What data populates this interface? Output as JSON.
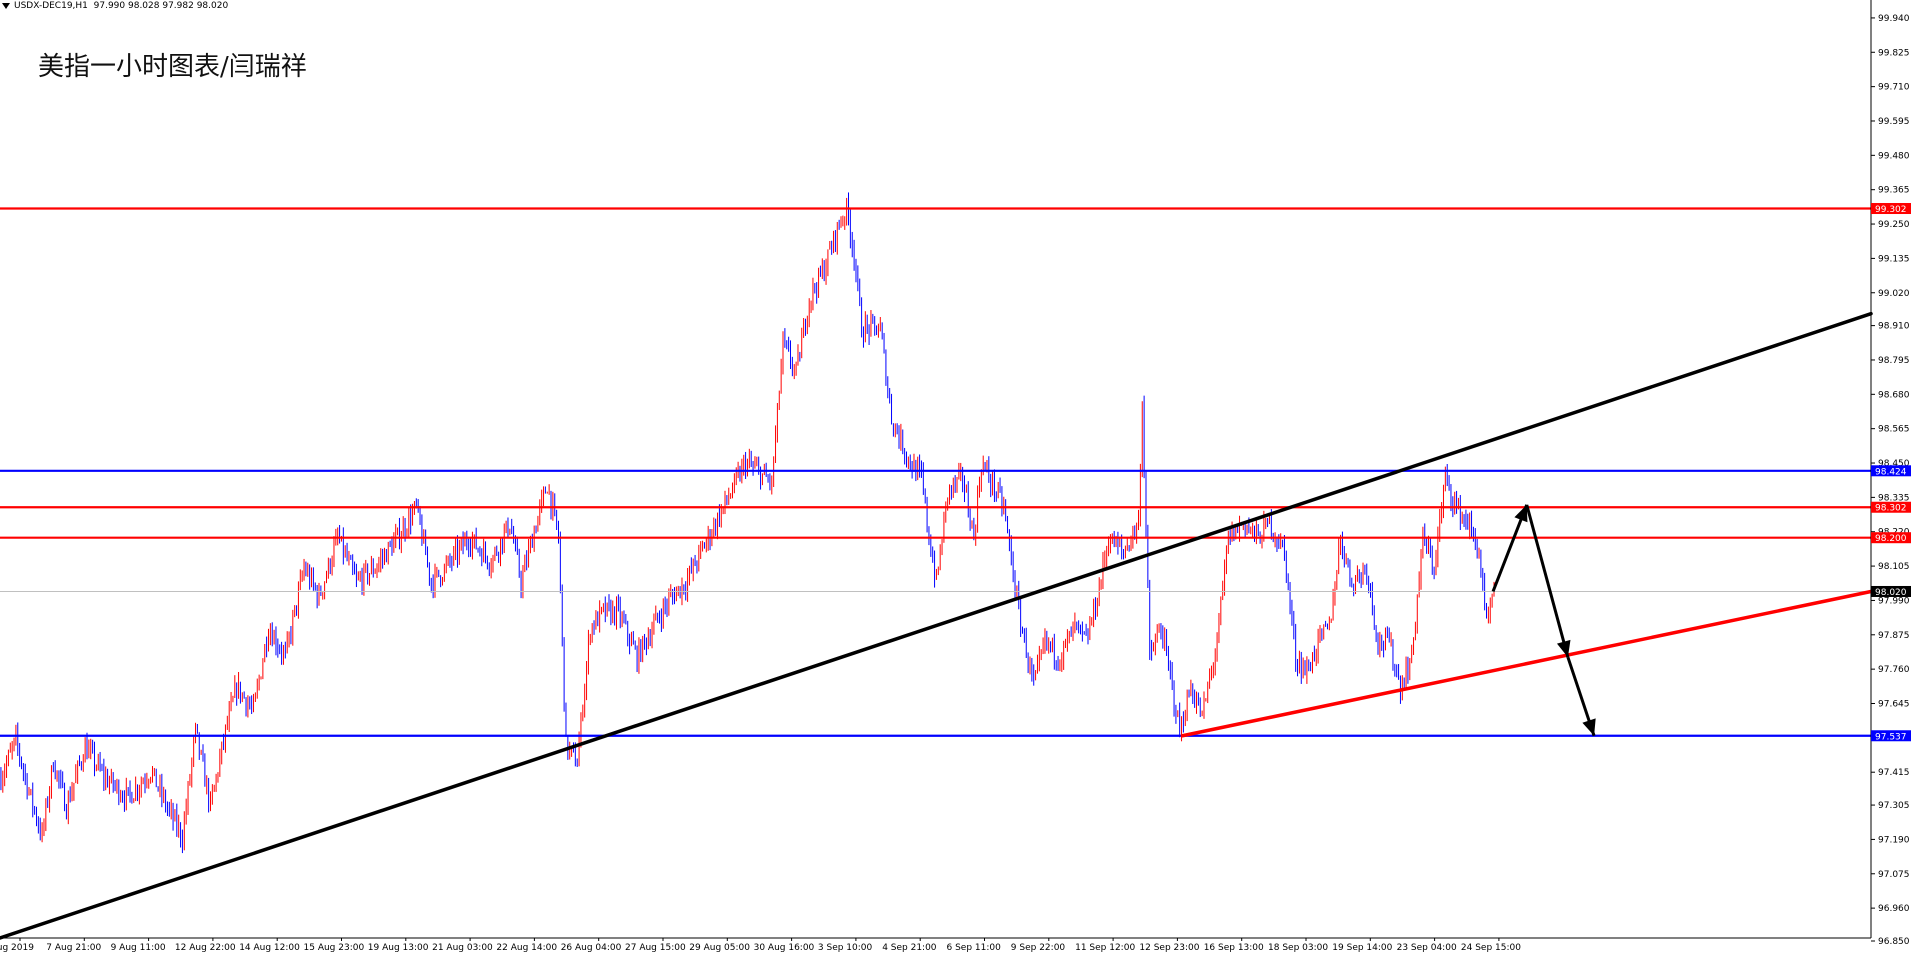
{
  "header": {
    "symbol": "USDX-DEC19,H1",
    "ohlc": "97.990 98.028 97.982 98.020"
  },
  "title": "美指一小时图表/闫瑞祥",
  "chart_data": {
    "type": "candlestick",
    "ylim": [
      96.86,
      100.0
    ],
    "y_ticks": [
      "99.940",
      "99.825",
      "99.710",
      "99.595",
      "99.480",
      "99.365",
      "99.250",
      "99.135",
      "99.020",
      "98.910",
      "98.795",
      "98.680",
      "98.565",
      "98.450",
      "98.335",
      "98.220",
      "98.105",
      "97.990",
      "97.875",
      "97.760",
      "97.645",
      "97.530",
      "97.415",
      "97.305",
      "97.190",
      "97.075",
      "96.960",
      "96.850"
    ],
    "x_labels": [
      "5 Aug 2019",
      "7 Aug 21:00",
      "9 Aug 11:00",
      "12 Aug 22:00",
      "14 Aug 12:00",
      "15 Aug 23:00",
      "19 Aug 13:00",
      "21 Aug 03:00",
      "22 Aug 14:00",
      "26 Aug 04:00",
      "27 Aug 15:00",
      "29 Aug 05:00",
      "30 Aug 16:00",
      "3 Sep 10:00",
      "4 Sep 21:00",
      "6 Sep 11:00",
      "9 Sep 22:00",
      "11 Sep 12:00",
      "12 Sep 23:00",
      "16 Sep 13:00",
      "18 Sep 03:00",
      "19 Sep 14:00",
      "23 Sep 04:00",
      "24 Sep 15:00"
    ],
    "levels": [
      {
        "value": 99.302,
        "label": "99.302",
        "color": "#ff0000"
      },
      {
        "value": 98.424,
        "label": "98.424",
        "color": "#0000ff"
      },
      {
        "value": 98.302,
        "label": "98.302",
        "color": "#ff0000"
      },
      {
        "value": 98.2,
        "label": "98.200",
        "color": "#ff0000"
      },
      {
        "value": 97.537,
        "label": "97.537",
        "color": "#0000ff"
      }
    ],
    "current_price": {
      "value": 98.02,
      "label": "98.020"
    },
    "candle_colors": {
      "up": "#ff0000",
      "down": "#0000ff"
    },
    "trendlines": [
      {
        "name": "long-uptrend",
        "color": "#000000",
        "from": {
          "bar": 0,
          "price": 96.86
        },
        "to": {
          "bar": 1000,
          "price": 98.95
        }
      },
      {
        "name": "support-trend",
        "color": "#ff0000",
        "from": {
          "bar": 632,
          "price": 97.537
        },
        "to": {
          "bar": 1000,
          "price": 98.02
        }
      }
    ],
    "projection_arrows": [
      {
        "from": {
          "bar": 798,
          "price": 98.02
        },
        "to": {
          "bar": 816,
          "price": 98.31
        }
      },
      {
        "from": {
          "bar": 816,
          "price": 98.31
        },
        "to": {
          "bar": 838,
          "price": 97.8
        }
      },
      {
        "from": {
          "bar": 838,
          "price": 97.8
        },
        "to": {
          "bar": 852,
          "price": 97.537
        }
      }
    ],
    "keyframes": [
      [
        0,
        97.4
      ],
      [
        8,
        97.52
      ],
      [
        15,
        97.35
      ],
      [
        22,
        97.2
      ],
      [
        28,
        97.45
      ],
      [
        35,
        97.3
      ],
      [
        45,
        97.5
      ],
      [
        55,
        97.4
      ],
      [
        68,
        97.33
      ],
      [
        80,
        97.42
      ],
      [
        90,
        97.28
      ],
      [
        97,
        97.2
      ],
      [
        104,
        97.55
      ],
      [
        112,
        97.3
      ],
      [
        120,
        97.55
      ],
      [
        126,
        97.7
      ],
      [
        135,
        97.62
      ],
      [
        143,
        97.9
      ],
      [
        152,
        97.8
      ],
      [
        162,
        98.1
      ],
      [
        170,
        98.0
      ],
      [
        180,
        98.2
      ],
      [
        190,
        98.05
      ],
      [
        200,
        98.1
      ],
      [
        212,
        98.2
      ],
      [
        222,
        98.3
      ],
      [
        230,
        98.05
      ],
      [
        238,
        98.1
      ],
      [
        250,
        98.2
      ],
      [
        262,
        98.12
      ],
      [
        272,
        98.25
      ],
      [
        278,
        98.05
      ],
      [
        284,
        98.2
      ],
      [
        292,
        98.38
      ],
      [
        298,
        98.2
      ],
      [
        302,
        97.5
      ],
      [
        308,
        97.45
      ],
      [
        315,
        97.9
      ],
      [
        322,
        97.95
      ],
      [
        330,
        97.95
      ],
      [
        340,
        97.8
      ],
      [
        350,
        97.92
      ],
      [
        358,
        98.0
      ],
      [
        366,
        98.05
      ],
      [
        374,
        98.15
      ],
      [
        382,
        98.25
      ],
      [
        390,
        98.35
      ],
      [
        398,
        98.45
      ],
      [
        405,
        98.42
      ],
      [
        412,
        98.38
      ],
      [
        418,
        98.85
      ],
      [
        425,
        98.75
      ],
      [
        432,
        99.0
      ],
      [
        440,
        99.1
      ],
      [
        448,
        99.25
      ],
      [
        452,
        99.3
      ],
      [
        456,
        99.15
      ],
      [
        460,
        98.9
      ],
      [
        470,
        98.9
      ],
      [
        476,
        98.6
      ],
      [
        486,
        98.45
      ],
      [
        492,
        98.4
      ],
      [
        496,
        98.2
      ],
      [
        500,
        98.05
      ],
      [
        506,
        98.35
      ],
      [
        514,
        98.4
      ],
      [
        520,
        98.2
      ],
      [
        524,
        98.45
      ],
      [
        530,
        98.38
      ],
      [
        536,
        98.3
      ],
      [
        544,
        97.95
      ],
      [
        552,
        97.7
      ],
      [
        558,
        97.85
      ],
      [
        566,
        97.8
      ],
      [
        574,
        97.9
      ],
      [
        580,
        97.85
      ],
      [
        586,
        98.0
      ],
      [
        592,
        98.2
      ],
      [
        600,
        98.15
      ],
      [
        608,
        98.25
      ],
      [
        610,
        98.65
      ],
      [
        614,
        97.8
      ],
      [
        620,
        97.9
      ],
      [
        626,
        97.7
      ],
      [
        630,
        97.55
      ],
      [
        636,
        97.7
      ],
      [
        642,
        97.6
      ],
      [
        650,
        97.85
      ],
      [
        656,
        98.2
      ],
      [
        664,
        98.25
      ],
      [
        672,
        98.2
      ],
      [
        678,
        98.25
      ],
      [
        686,
        98.15
      ],
      [
        692,
        97.8
      ],
      [
        698,
        97.75
      ],
      [
        704,
        97.85
      ],
      [
        710,
        97.9
      ],
      [
        716,
        98.2
      ],
      [
        722,
        98.05
      ],
      [
        730,
        98.1
      ],
      [
        736,
        97.85
      ],
      [
        742,
        97.85
      ],
      [
        748,
        97.7
      ],
      [
        754,
        97.8
      ],
      [
        760,
        98.2
      ],
      [
        766,
        98.1
      ],
      [
        772,
        98.4
      ],
      [
        778,
        98.3
      ],
      [
        784,
        98.25
      ],
      [
        790,
        98.15
      ],
      [
        794,
        97.9
      ],
      [
        798,
        98.02
      ]
    ]
  }
}
